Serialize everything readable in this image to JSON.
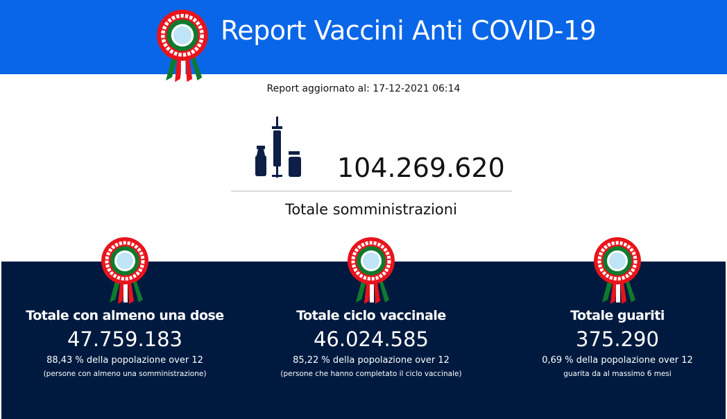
{
  "header": {
    "title": "Report Vaccini Anti COVID-19",
    "color": "#0a66e8"
  },
  "updated": "Report aggiornato al: 17-12-2021 06:14",
  "total": {
    "value": "104.269.620",
    "label": "Totale somministrazioni",
    "icon": "vaccine-vial-syringe-icon"
  },
  "cards": [
    {
      "title": "Totale con almeno una dose",
      "value": "47.759.183",
      "pct": "88,43 % della popolazione over 12",
      "note": "(persone con almeno una somministrazione)"
    },
    {
      "title": "Totale ciclo vaccinale",
      "value": "46.024.585",
      "pct": "85,22 % della popolazione over 12",
      "note": "(persone che hanno completato il ciclo vaccinale)"
    },
    {
      "title": "Totale guariti",
      "value": "375.290",
      "pct": "0,69 % della popolazione over 12",
      "note": "guarita da al massimo 6 mesi"
    }
  ],
  "colors": {
    "panel": "#001a3f",
    "cockade_red": "#e8141c",
    "cockade_green": "#0f7a2e"
  }
}
